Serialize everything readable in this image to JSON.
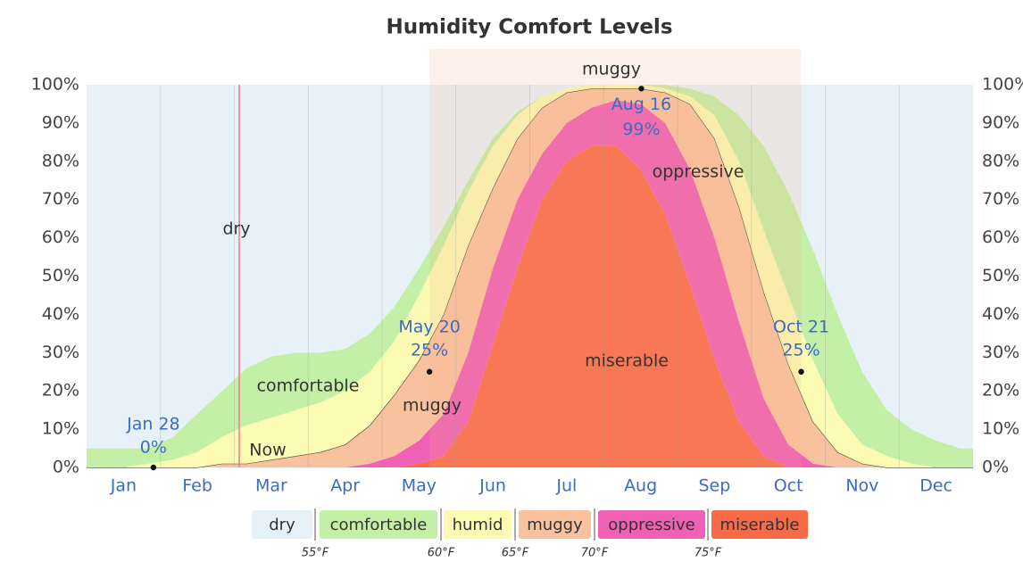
{
  "chart_data": {
    "type": "stacked_area",
    "title": "Humidity Comfort Levels",
    "categories": [
      null,
      "Jan",
      null,
      null,
      "Feb",
      null,
      null,
      "Mar",
      null,
      null,
      "Apr",
      null,
      null,
      "May",
      null,
      null,
      "Jun",
      null,
      null,
      "Jul",
      null,
      null,
      "Aug",
      null,
      null,
      "Sep",
      null,
      null,
      "Oct",
      null,
      null,
      "Nov",
      null,
      null,
      "Dec",
      null
    ],
    "series": [
      {
        "name": "dry",
        "color": "#e6f2f8",
        "values": [
          95,
          95,
          95,
          92,
          86,
          80,
          74,
          71,
          70,
          70,
          69,
          65,
          58,
          48,
          37,
          25,
          14,
          7,
          3,
          1,
          0,
          0,
          0,
          0,
          1,
          3,
          8,
          16,
          28,
          43,
          60,
          75,
          85,
          90,
          93,
          95
        ]
      },
      {
        "name": "comfortable",
        "color": "#c4efa6",
        "values": [
          5,
          5,
          4,
          6,
          10,
          12,
          15,
          16,
          15,
          13,
          11,
          10,
          9,
          7,
          5,
          3,
          2,
          1,
          0,
          0,
          0,
          0,
          0,
          1,
          2,
          5,
          12,
          22,
          27,
          29,
          26,
          19,
          12,
          9,
          7,
          5
        ]
      },
      {
        "name": "humid",
        "color": "#fbfbb4",
        "values": [
          0,
          0,
          1,
          2,
          4,
          7,
          10,
          11,
          12,
          13,
          14,
          14,
          14,
          17,
          18,
          14,
          11,
          6,
          3,
          1,
          1,
          1,
          1,
          1,
          2,
          6,
          12,
          16,
          18,
          16,
          10,
          5,
          3,
          1,
          0,
          0
        ]
      },
      {
        "name": "muggy",
        "color": "#f8c29e",
        "values": [
          0,
          0,
          0,
          0,
          0,
          1,
          1,
          2,
          3,
          4,
          6,
          10,
          16,
          21,
          26,
          28,
          21,
          16,
          12,
          8,
          5,
          3,
          4,
          8,
          17,
          26,
          30,
          28,
          21,
          11,
          4,
          1,
          0,
          0,
          0,
          0
        ]
      },
      {
        "name": "oppressive",
        "color": "#f060b4",
        "values": [
          0,
          0,
          0,
          0,
          0,
          0,
          0,
          0,
          0,
          0,
          0,
          1,
          3,
          6,
          11,
          18,
          20,
          18,
          12,
          10,
          10,
          12,
          17,
          24,
          30,
          32,
          26,
          15,
          6,
          1,
          0,
          0,
          0,
          0,
          0,
          0
        ]
      },
      {
        "name": "miserable",
        "color": "#f86b48",
        "values": [
          0,
          0,
          0,
          0,
          0,
          0,
          0,
          0,
          0,
          0,
          0,
          0,
          0,
          1,
          3,
          12,
          32,
          52,
          70,
          80,
          84,
          84,
          78,
          66,
          48,
          28,
          12,
          3,
          0,
          0,
          0,
          0,
          0,
          0,
          0,
          0
        ]
      }
    ],
    "ylim": [
      0,
      100
    ],
    "yticks": [
      {
        "value": 0,
        "label": "0%"
      },
      {
        "value": 10,
        "label": "10%"
      },
      {
        "value": 20,
        "label": "20%"
      },
      {
        "value": 30,
        "label": "30%"
      },
      {
        "value": 40,
        "label": "40%"
      },
      {
        "value": 50,
        "label": "50%"
      },
      {
        "value": 60,
        "label": "60%"
      },
      {
        "value": 70,
        "label": "70%"
      },
      {
        "value": 80,
        "label": "80%"
      },
      {
        "value": 90,
        "label": "90%"
      },
      {
        "value": 100,
        "label": "100%"
      }
    ],
    "y2lim": [
      0,
      100
    ],
    "y2ticks": [
      {
        "value": 0,
        "label": "0%"
      },
      {
        "value": 10,
        "label": "10%"
      },
      {
        "value": 20,
        "label": "20%"
      },
      {
        "value": 30,
        "label": "30%"
      },
      {
        "value": 40,
        "label": "40%"
      },
      {
        "value": 50,
        "label": "50%"
      },
      {
        "value": 60,
        "label": "60%"
      },
      {
        "value": 70,
        "label": "70%"
      },
      {
        "value": 80,
        "label": "80%"
      },
      {
        "value": 90,
        "label": "90%"
      },
      {
        "value": 100,
        "label": "100%"
      }
    ],
    "annotations": [
      {
        "date": "Jan 28",
        "value": 0,
        "label": "0%"
      },
      {
        "date": "May 20",
        "value": 25,
        "label": "25%"
      },
      {
        "date": "Aug 16",
        "value": 99,
        "label": "99%"
      },
      {
        "date": "Oct 21",
        "value": 25,
        "label": "25%"
      }
    ],
    "now_label": "Now",
    "legend_thresholds": [
      "55°F",
      "60°F",
      "65°F",
      "70°F",
      "75°F"
    ],
    "grid": true
  }
}
